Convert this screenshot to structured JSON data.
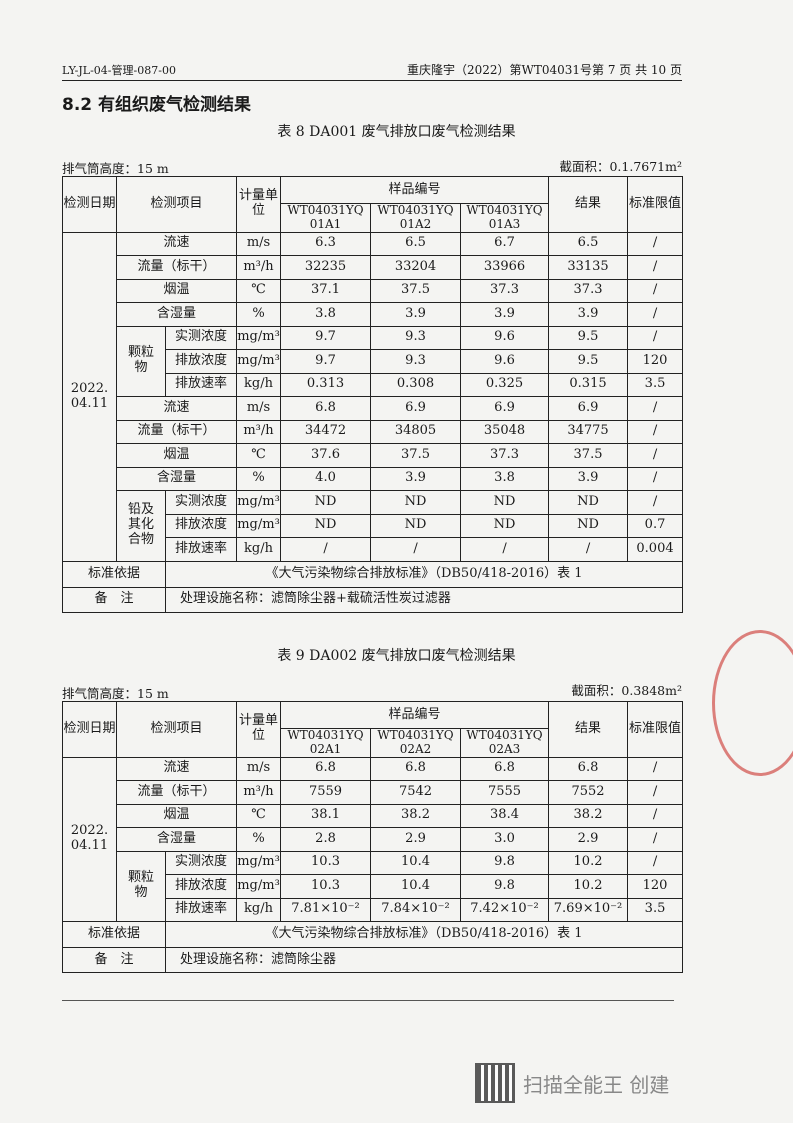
{
  "header": {
    "doc_code": "LY-JL-04-管理-087-00",
    "page_ref": "重庆隆宇（2022）第WT04031号第 7 页 共 10 页"
  },
  "section_title": "8.2 有组织废气检测结果",
  "columns": {
    "date": "检测日期",
    "item": "检测项目",
    "unit": "计量单位",
    "sample_group": "样品编号",
    "result": "结果",
    "limit": "标准限值"
  },
  "tables": [
    {
      "caption": "表 8  DA001 废气排放口废气检测结果",
      "stack_height": "排气筒高度：15 m",
      "area": "截面积：0.1.7671m²",
      "samples": [
        "WT04031YQ 01A1",
        "WT04031YQ 01A2",
        "WT04031YQ 01A3"
      ],
      "date": "2022. 04.11",
      "rows": [
        {
          "item": "流速",
          "unit": "m/s",
          "values": [
            "6.3",
            "6.5",
            "6.7"
          ],
          "result": "6.5",
          "limit": "/"
        },
        {
          "item": "流量（标干）",
          "unit": "m³/h",
          "values": [
            "32235",
            "33204",
            "33966"
          ],
          "result": "33135",
          "limit": "/"
        },
        {
          "item": "烟温",
          "unit": "℃",
          "values": [
            "37.1",
            "37.5",
            "37.3"
          ],
          "result": "37.3",
          "limit": "/"
        },
        {
          "item": "含湿量",
          "unit": "%",
          "values": [
            "3.8",
            "3.9",
            "3.9"
          ],
          "result": "3.9",
          "limit": "/"
        },
        {
          "group": "颗粒物",
          "rows": [
            {
              "item": "实测浓度",
              "unit": "mg/m³",
              "values": [
                "9.7",
                "9.3",
                "9.6"
              ],
              "result": "9.5",
              "limit": "/"
            },
            {
              "item": "排放浓度",
              "unit": "mg/m³",
              "values": [
                "9.7",
                "9.3",
                "9.6"
              ],
              "result": "9.5",
              "limit": "120"
            },
            {
              "item": "排放速率",
              "unit": "kg/h",
              "values": [
                "0.313",
                "0.308",
                "0.325"
              ],
              "result": "0.315",
              "limit": "3.5"
            }
          ]
        },
        {
          "item": "流速",
          "unit": "m/s",
          "values": [
            "6.8",
            "6.9",
            "6.9"
          ],
          "result": "6.9",
          "limit": "/"
        },
        {
          "item": "流量（标干）",
          "unit": "m³/h",
          "values": [
            "34472",
            "34805",
            "35048"
          ],
          "result": "34775",
          "limit": "/"
        },
        {
          "item": "烟温",
          "unit": "℃",
          "values": [
            "37.6",
            "37.5",
            "37.3"
          ],
          "result": "37.5",
          "limit": "/"
        },
        {
          "item": "含湿量",
          "unit": "%",
          "values": [
            "4.0",
            "3.9",
            "3.8"
          ],
          "result": "3.9",
          "limit": "/"
        },
        {
          "group": "铅及其化合物",
          "rows": [
            {
              "item": "实测浓度",
              "unit": "mg/m³",
              "values": [
                "ND",
                "ND",
                "ND"
              ],
              "result": "ND",
              "limit": "/"
            },
            {
              "item": "排放浓度",
              "unit": "mg/m³",
              "values": [
                "ND",
                "ND",
                "ND"
              ],
              "result": "ND",
              "limit": "0.7"
            },
            {
              "item": "排放速率",
              "unit": "kg/h",
              "values": [
                "/",
                "/",
                "/"
              ],
              "result": "/",
              "limit": "0.004"
            }
          ]
        }
      ],
      "basis_label": "标准依据",
      "basis": "《大气污染物综合排放标准》（DB50/418-2016）表 1",
      "note_label": "备　注",
      "note": "处理设施名称：滤筒除尘器+载硫活性炭过滤器"
    },
    {
      "caption": "表 9  DA002 废气排放口废气检测结果",
      "stack_height": "排气筒高度：15 m",
      "area": "截面积：0.3848m²",
      "samples": [
        "WT04031YQ 02A1",
        "WT04031YQ 02A2",
        "WT04031YQ 02A3"
      ],
      "date": "2022. 04.11",
      "rows": [
        {
          "item": "流速",
          "unit": "m/s",
          "values": [
            "6.8",
            "6.8",
            "6.8"
          ],
          "result": "6.8",
          "limit": "/"
        },
        {
          "item": "流量（标干）",
          "unit": "m³/h",
          "values": [
            "7559",
            "7542",
            "7555"
          ],
          "result": "7552",
          "limit": "/"
        },
        {
          "item": "烟温",
          "unit": "℃",
          "values": [
            "38.1",
            "38.2",
            "38.4"
          ],
          "result": "38.2",
          "limit": "/"
        },
        {
          "item": "含湿量",
          "unit": "%",
          "values": [
            "2.8",
            "2.9",
            "3.0"
          ],
          "result": "2.9",
          "limit": "/"
        },
        {
          "group": "颗粒物",
          "rows": [
            {
              "item": "实测浓度",
              "unit": "mg/m³",
              "values": [
                "10.3",
                "10.4",
                "9.8"
              ],
              "result": "10.2",
              "limit": "/"
            },
            {
              "item": "排放浓度",
              "unit": "mg/m³",
              "values": [
                "10.3",
                "10.4",
                "9.8"
              ],
              "result": "10.2",
              "limit": "120"
            },
            {
              "item": "排放速率",
              "unit": "kg/h",
              "values": [
                "7.81×10⁻²",
                "7.84×10⁻²",
                "7.42×10⁻²"
              ],
              "result": "7.69×10⁻²",
              "limit": "3.5"
            }
          ]
        }
      ],
      "basis_label": "标准依据",
      "basis": "《大气污染物综合排放标准》（DB50/418-2016）表 1",
      "note_label": "备　注",
      "note": "处理设施名称：滤筒除尘器"
    }
  ],
  "scanner_mark": "扫描全能王 创建",
  "stamp_color": "#c9302c"
}
